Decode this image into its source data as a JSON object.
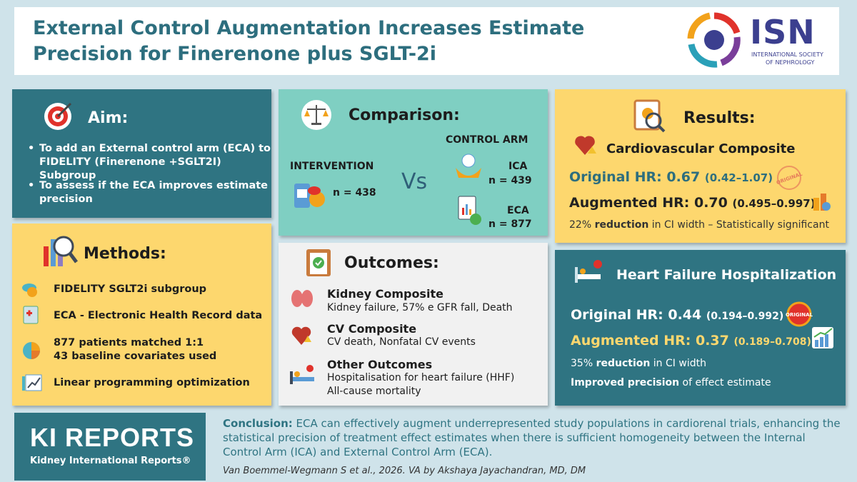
{
  "header": {
    "title": "External Control Augmentation Increases Estimate Precision for Finerenone plus SGLT-2i",
    "logo": {
      "text": "ISN",
      "subtitle_lines": [
        "INTERNATIONAL SOCIETY",
        "OF NEPHROLOGY"
      ]
    }
  },
  "aim": {
    "heading": "Aim:",
    "items": [
      [
        "To add an External control arm (ECA) to",
        "FIDELITY (Finerenone +SGLT2I) Subgroup"
      ],
      [
        "To assess if the ECA improves estimate",
        "precision"
      ]
    ]
  },
  "methods": {
    "heading": "Methods:",
    "items": [
      [
        "FIDELITY SGLT2i subgroup"
      ],
      [
        "ECA - Electronic Health Record data"
      ],
      [
        "877 patients matched 1:1",
        "43 baseline covariates used"
      ],
      [
        "Linear programming optimization"
      ]
    ]
  },
  "comparison": {
    "heading": "Comparison:",
    "control_arm_label": "CONTROL ARM",
    "intervention": {
      "label": "INTERVENTION",
      "n": "n = 438"
    },
    "vs": "Vs",
    "arms": [
      {
        "label": "ICA",
        "n": "n = 439"
      },
      {
        "label": "ECA",
        "n": "n = 877"
      }
    ]
  },
  "outcomes": {
    "heading": "Outcomes:",
    "items": [
      {
        "title": "Kidney Composite",
        "lines": [
          "Kidney failure, 57% e GFR fall, Death"
        ]
      },
      {
        "title": "CV Composite",
        "lines": [
          "CV death, Nonfatal CV events"
        ]
      },
      {
        "title": "Other Outcomes",
        "lines": [
          "Hospitalisation for heart failure (HHF)",
          "All-cause mortality"
        ]
      }
    ]
  },
  "results": {
    "heading": "Results:",
    "title": "Cardiovascular Composite",
    "original": {
      "label": "Original HR: 0.67",
      "ci": "(0.42–1.07)"
    },
    "augmented": {
      "label": "Augmented HR: 0.70",
      "ci": "(0.495–0.997)"
    },
    "stamp": "ORIGINAL",
    "note": {
      "value": "22%",
      "emphasis": "reduction",
      "rest": "in CI width – Statistically significant"
    }
  },
  "heart_failure": {
    "title": "Heart Failure Hospitalization",
    "original": {
      "label": "Original HR: 0.44",
      "ci": "(0.194–0.992)"
    },
    "augmented": {
      "label": "Augmented HR: 0.37",
      "ci": "(0.189–0.708)"
    },
    "stamp": "ORIGINAL",
    "notes": [
      {
        "value": "35%",
        "emphasis": "reduction",
        "rest": "in CI width"
      },
      {
        "emphasis": "Improved precision",
        "rest": "of effect estimate"
      }
    ]
  },
  "footer": {
    "brand": "KI REPORTS",
    "brand_subtitle": "Kidney International Reports®",
    "conclusion_label": "Conclusion:",
    "conclusion": "ECA can effectively augment underrepresented study populations in cardiorenal trials, enhancing the statistical precision of treatment effect estimates when there is sufficient homogeneity between the Internal Control Arm (ICA) and External Control Arm (ECA).",
    "citation": "Van Boemmel-Wegmann S et al., 2026. VA by Akshaya Jayachandran, MD, DM"
  }
}
